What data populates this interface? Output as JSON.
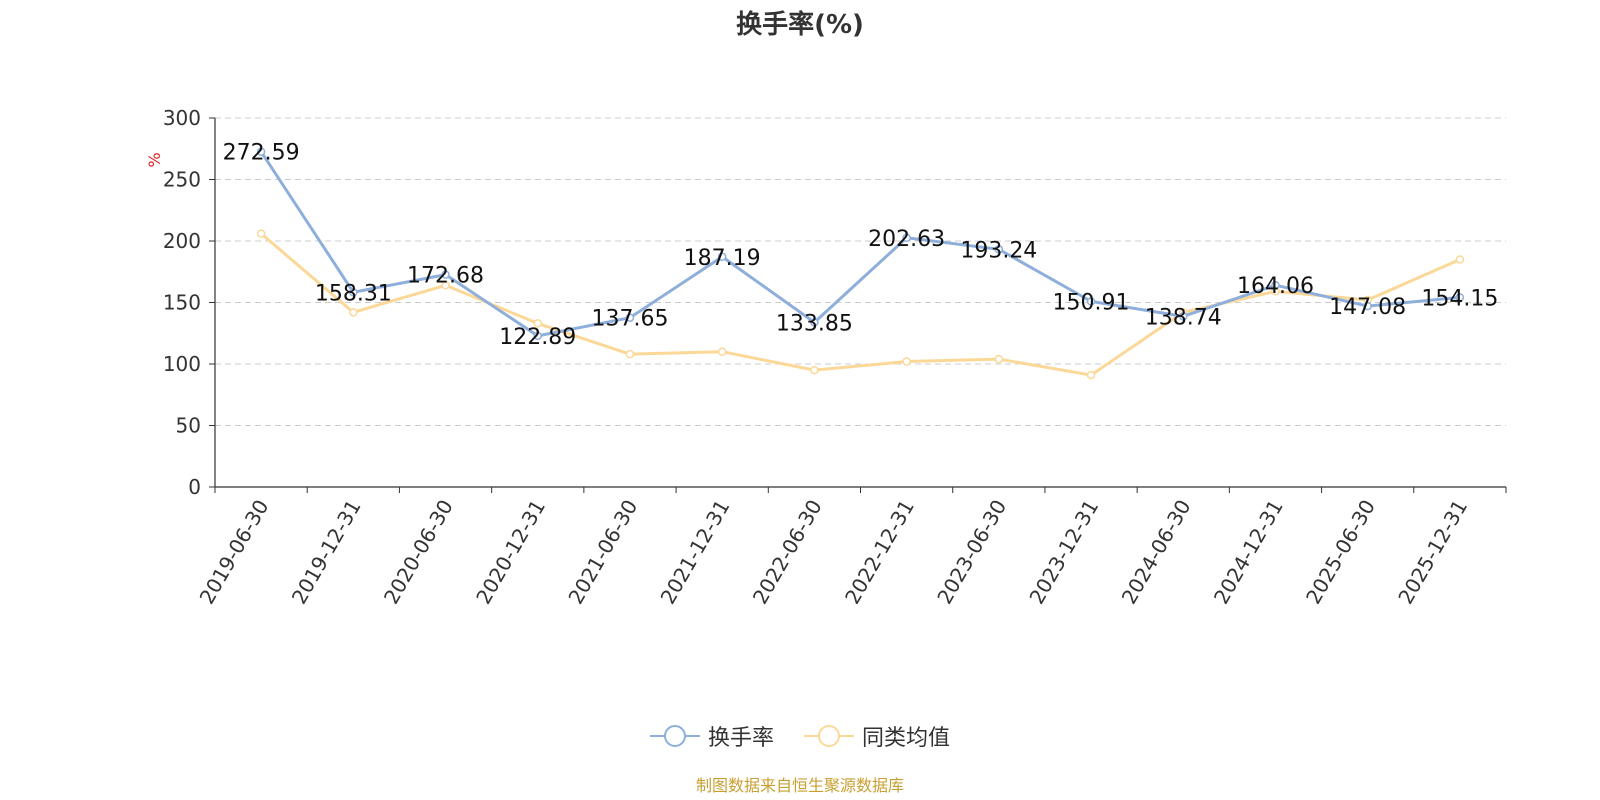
{
  "title": "换手率(%)",
  "source_note": "制图数据来自恒生聚源数据库",
  "chart_data": {
    "type": "line",
    "title": "换手率(%)",
    "xlabel": "",
    "ylabel": "%",
    "ylim": [
      0,
      300
    ],
    "yticks": [
      0,
      50,
      100,
      150,
      200,
      250,
      300
    ],
    "grid": true,
    "legend_position": "bottom",
    "x": [
      "2019-06-30",
      "2019-12-31",
      "2020-06-30",
      "2020-12-31",
      "2021-06-30",
      "2021-12-31",
      "2022-06-30",
      "2022-12-31",
      "2023-06-30",
      "2023-12-31",
      "2024-06-30",
      "2024-12-31",
      "2025-06-30",
      "2025-12-31"
    ],
    "series": [
      {
        "name": "换手率",
        "color": "#8eaedb",
        "values": [
          272.59,
          158.31,
          172.68,
          122.89,
          137.65,
          187.19,
          133.85,
          202.63,
          193.24,
          150.91,
          138.74,
          164.06,
          147.08,
          154.15
        ],
        "labels": [
          "272.59",
          "158.31",
          "172.68",
          "122.89",
          "137.65",
          "187.19",
          "133.85",
          "202.63",
          "193.24",
          "150.91",
          "138.74",
          "164.06",
          "147.08",
          "154.15"
        ]
      },
      {
        "name": "同类均值",
        "color": "#fbd898",
        "values": [
          206,
          142,
          164,
          133,
          108,
          110,
          95,
          102,
          104,
          91,
          142,
          159,
          152,
          185
        ]
      }
    ]
  }
}
